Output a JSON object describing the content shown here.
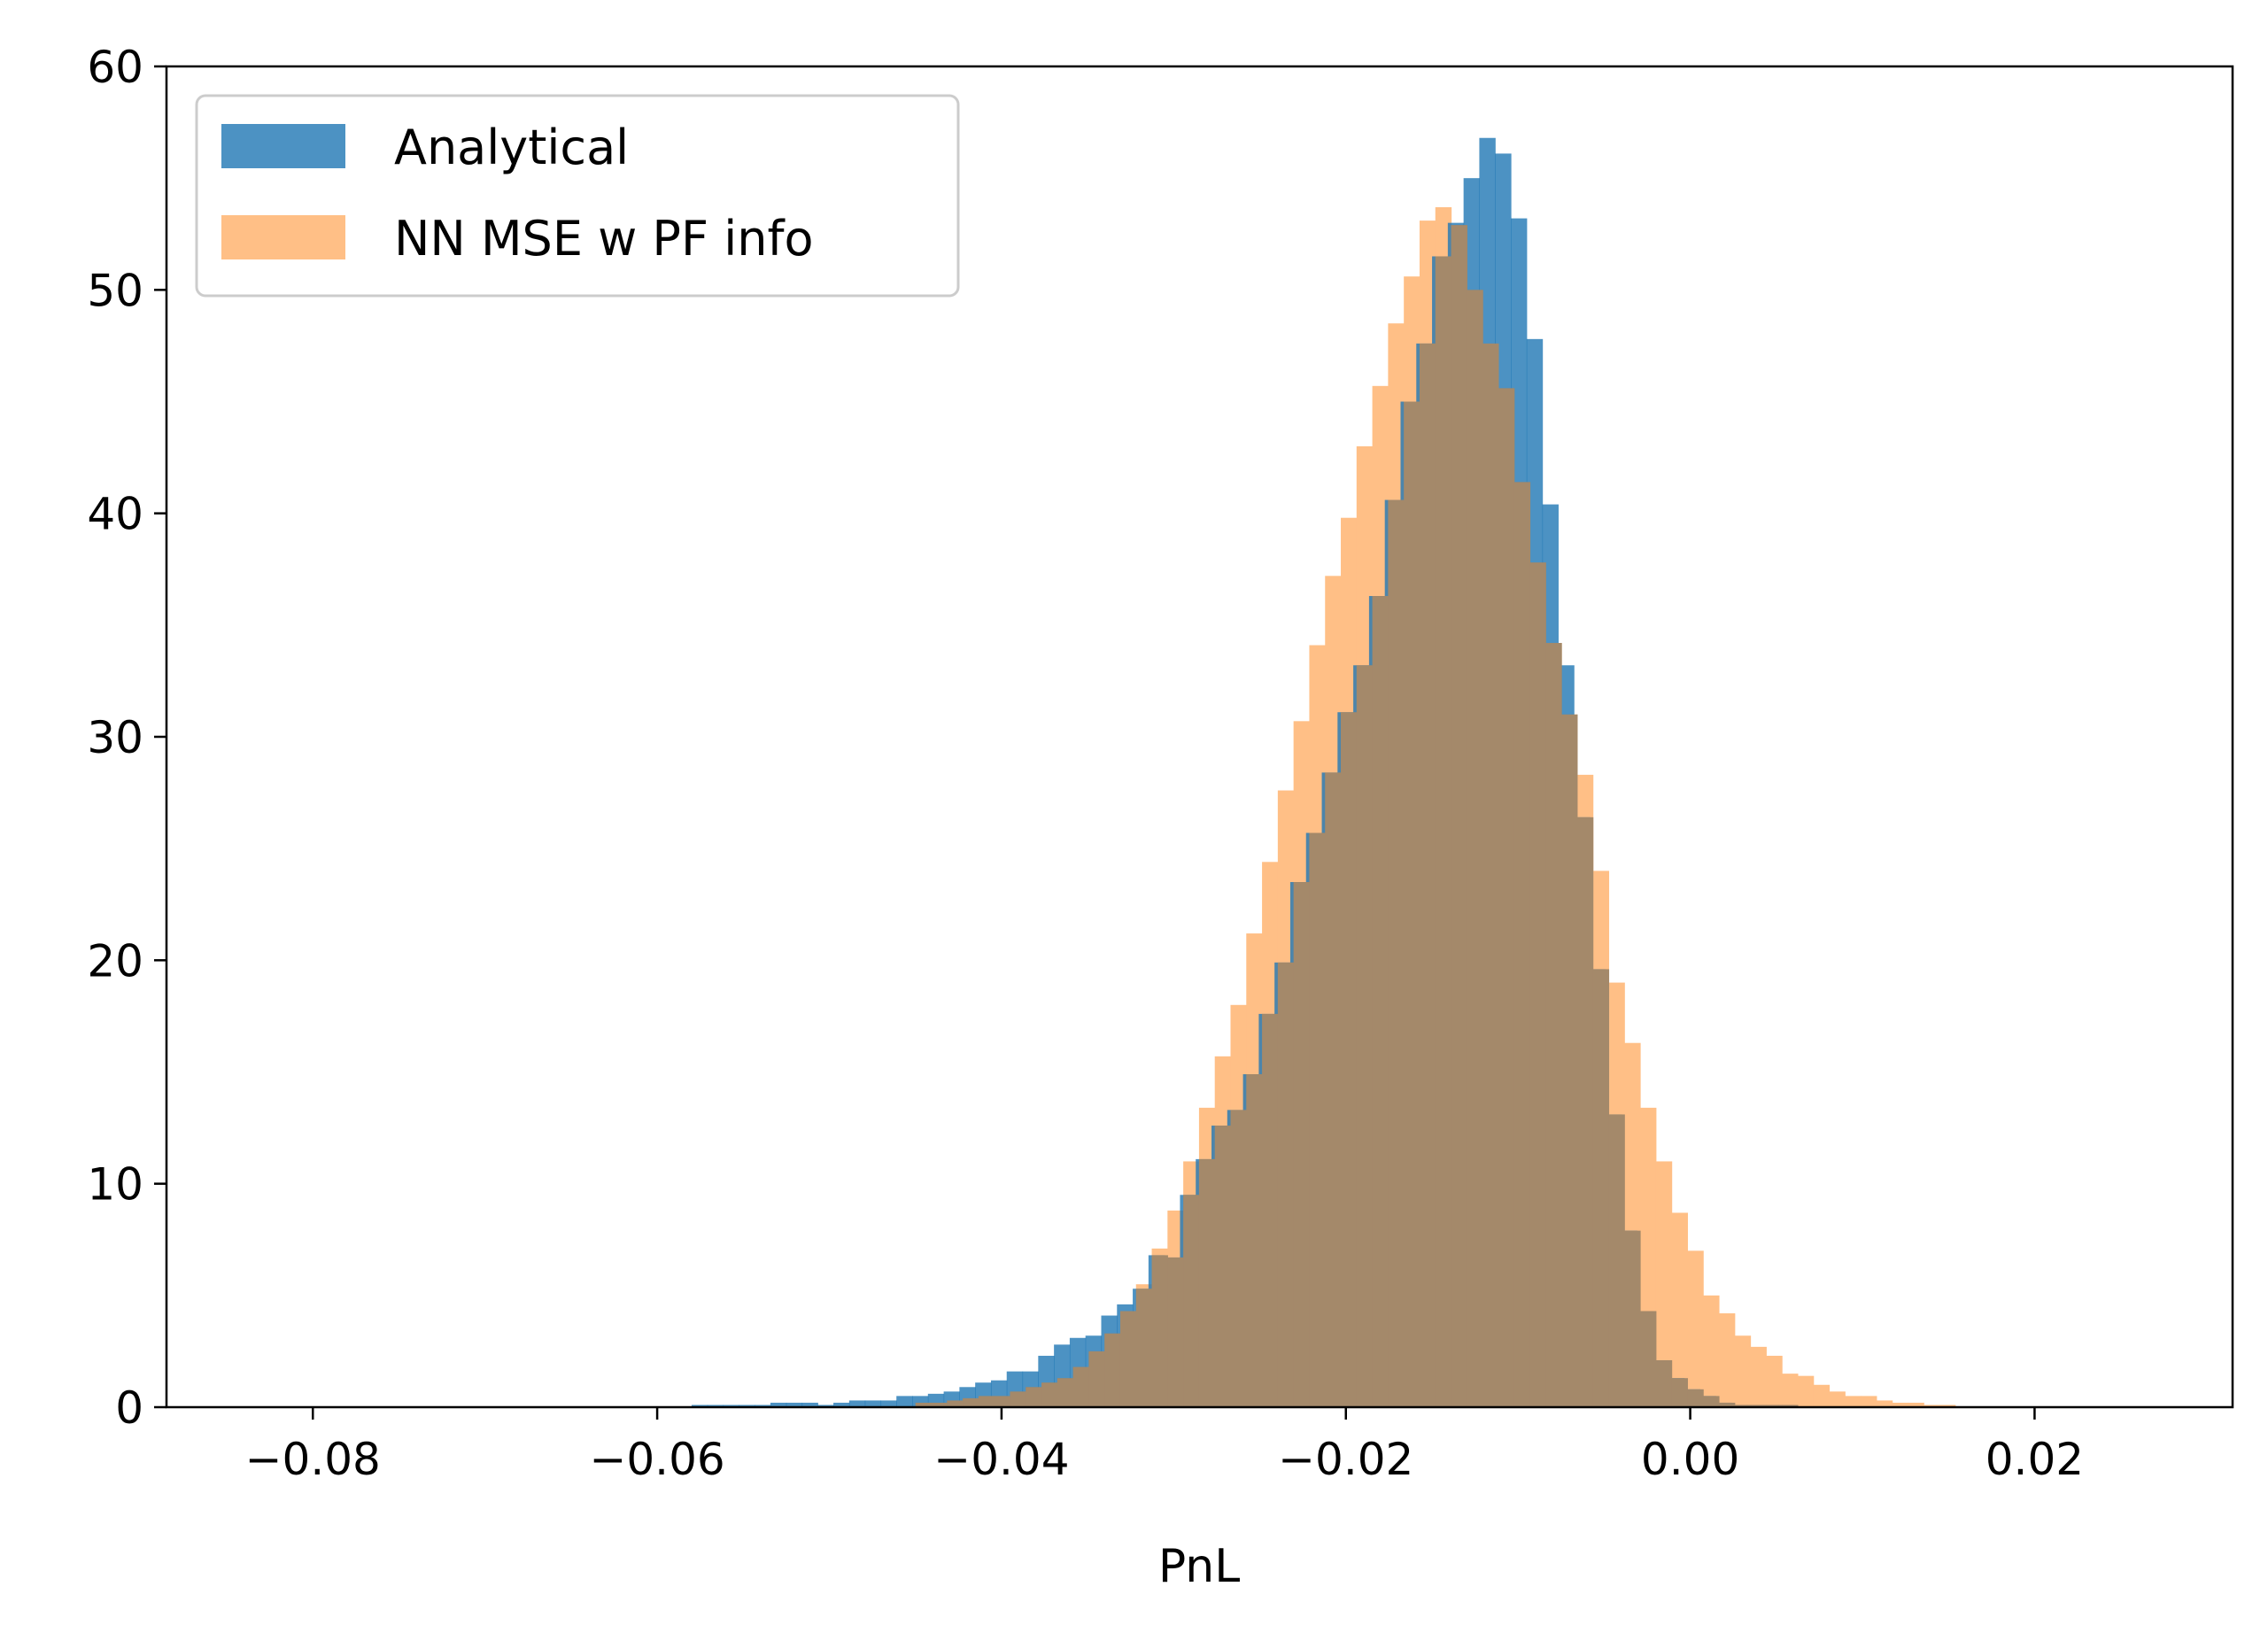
{
  "chart_data": {
    "type": "histogram",
    "title": "",
    "xlabel": "PnL",
    "ylabel": "",
    "xlim": [
      -0.0885,
      0.0315
    ],
    "ylim": [
      0,
      60
    ],
    "xticks": [
      -0.08,
      -0.06,
      -0.04,
      -0.02,
      0.0,
      0.02
    ],
    "xtick_labels": [
      "−0.08",
      "−0.06",
      "−0.04",
      "−0.02",
      "0.00",
      "0.02"
    ],
    "yticks": [
      0,
      10,
      20,
      30,
      40,
      50,
      60
    ],
    "ytick_labels": [
      "0",
      "10",
      "20",
      "30",
      "40",
      "50",
      "60"
    ],
    "grid": false,
    "legend_position": "top-left",
    "series": [
      {
        "name": "Analytical",
        "color": "#1f77b4",
        "alpha": 0.8,
        "bin_width": 0.000915,
        "bin_start": -0.058,
        "counts": [
          0.1,
          0.1,
          0.1,
          0.1,
          0.1,
          0.2,
          0.2,
          0.2,
          0.1,
          0.2,
          0.3,
          0.3,
          0.3,
          0.5,
          0.5,
          0.6,
          0.7,
          0.9,
          1.1,
          1.2,
          1.6,
          1.6,
          2.3,
          2.8,
          3.1,
          3.2,
          4.1,
          4.6,
          5.3,
          6.8,
          6.7,
          9.5,
          11.1,
          12.6,
          13.3,
          14.9,
          17.6,
          19.9,
          23.5,
          25.7,
          28.4,
          31.1,
          33.2,
          36.3,
          40.6,
          45.0,
          47.6,
          51.5,
          53.0,
          55.0,
          56.8,
          56.1,
          53.2,
          47.8,
          40.4,
          33.2,
          26.4,
          19.6,
          13.1,
          7.9,
          4.3,
          2.1,
          1.3,
          0.8,
          0.5,
          0.2,
          0.1,
          0.1,
          0.1,
          0.1
        ]
      },
      {
        "name": "NN MSE w PF info",
        "color": "#ffbf86",
        "alpha": 1.0,
        "bin_width": 0.000915,
        "bin_start": -0.045,
        "counts": [
          0.2,
          0.2,
          0.3,
          0.4,
          0.5,
          0.5,
          0.7,
          0.9,
          1.1,
          1.3,
          1.8,
          2.5,
          3.3,
          4.3,
          5.5,
          7.1,
          8.8,
          11.0,
          13.4,
          15.7,
          18.0,
          21.2,
          24.4,
          27.6,
          30.7,
          34.1,
          37.2,
          39.8,
          43.0,
          45.7,
          48.5,
          50.6,
          53.1,
          53.7,
          52.9,
          50.0,
          47.6,
          45.6,
          41.4,
          37.8,
          34.2,
          31.0,
          28.3,
          24.0,
          19.0,
          16.3,
          13.4,
          11.0,
          8.7,
          7.0,
          5.0,
          4.2,
          3.2,
          2.7,
          2.3,
          1.5,
          1.4,
          1.0,
          0.7,
          0.5,
          0.5,
          0.3,
          0.2,
          0.2,
          0.1,
          0.1
        ]
      }
    ]
  }
}
